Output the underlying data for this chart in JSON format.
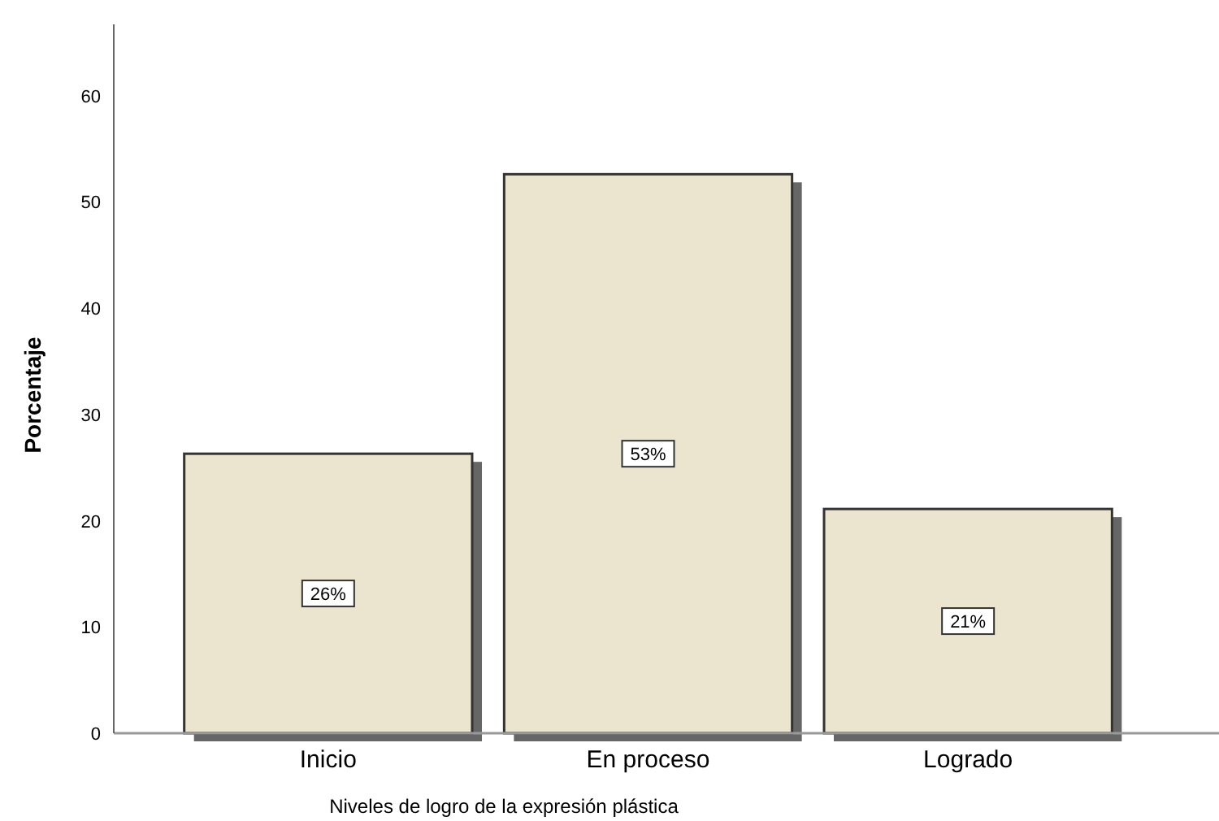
{
  "chart_data": {
    "type": "bar",
    "xlabel": "Niveles de logro de la expresión plástica",
    "ylabel": "Porcentaje",
    "categories": [
      "Inicio",
      "En proceso",
      "Logrado"
    ],
    "values": [
      26.3,
      52.6,
      21.1
    ],
    "value_labels": [
      "26%",
      "53%",
      "21%"
    ],
    "color": "#ebe4cf",
    "ylim": [
      0,
      66.7
    ],
    "yticks": [
      0,
      10,
      20,
      30,
      40,
      50,
      60
    ],
    "grid": false
  }
}
